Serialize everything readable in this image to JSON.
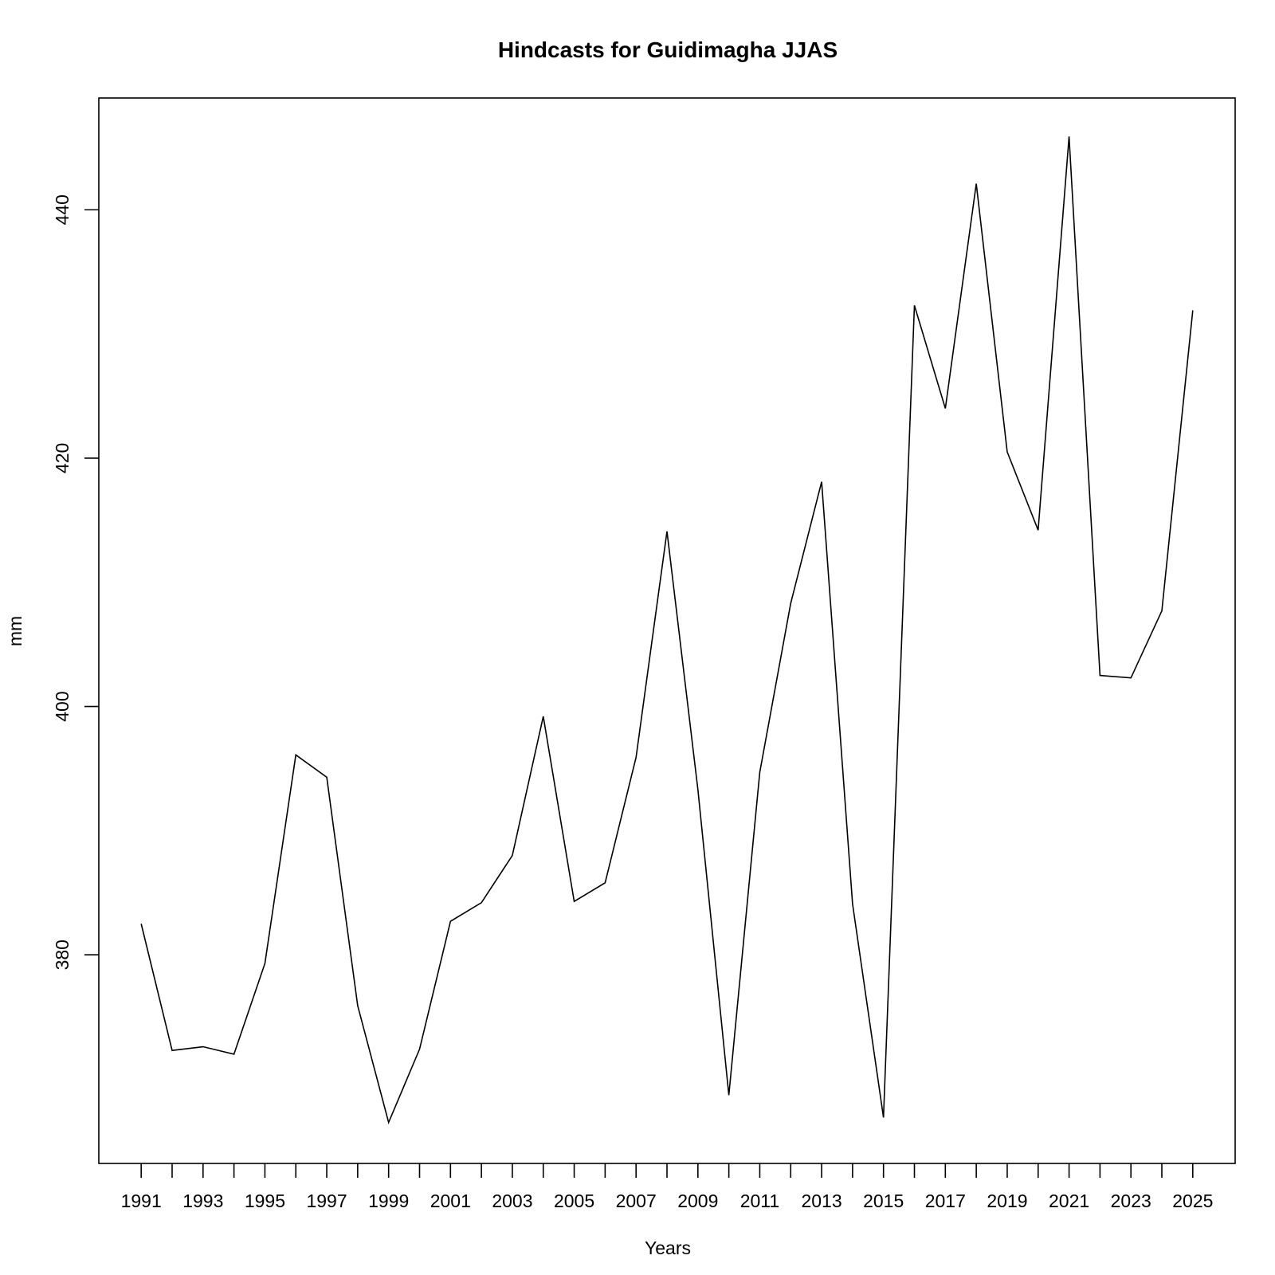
{
  "chart_data": {
    "type": "line",
    "title": "Hindcasts for Guidimagha JJAS",
    "xlabel": "Years",
    "ylabel": "mm",
    "x": [
      1991,
      1992,
      1993,
      1994,
      1995,
      1996,
      1997,
      1998,
      1999,
      2000,
      2001,
      2002,
      2003,
      2004,
      2005,
      2006,
      2007,
      2008,
      2009,
      2010,
      2011,
      2012,
      2013,
      2014,
      2015,
      2016,
      2017,
      2018,
      2019,
      2020,
      2021,
      2022,
      2023,
      2024,
      2025
    ],
    "values": [
      382.5,
      372.3,
      372.6,
      372.0,
      379.3,
      396.1,
      394.3,
      375.9,
      366.5,
      372.4,
      382.7,
      384.2,
      388.0,
      399.2,
      384.3,
      385.8,
      395.9,
      414.1,
      393.3,
      368.7,
      394.7,
      408.3,
      418.1,
      384.1,
      366.9,
      432.3,
      424.0,
      442.1,
      420.5,
      414.2,
      445.9,
      402.5,
      402.3,
      407.7,
      431.9
    ],
    "xticks": [
      "1991",
      "1993",
      "1995",
      "1997",
      "1999",
      "2001",
      "2003",
      "2005",
      "2007",
      "2009",
      "2011",
      "2013",
      "2015",
      "2017",
      "2019",
      "2021",
      "2023",
      "2025"
    ],
    "yticks": [
      "380",
      "400",
      "420",
      "440"
    ],
    "xlim": [
      1989.63,
      2026.37
    ],
    "ylim": [
      363.2,
      449.0
    ],
    "grid": false,
    "line_color": "#000000"
  }
}
